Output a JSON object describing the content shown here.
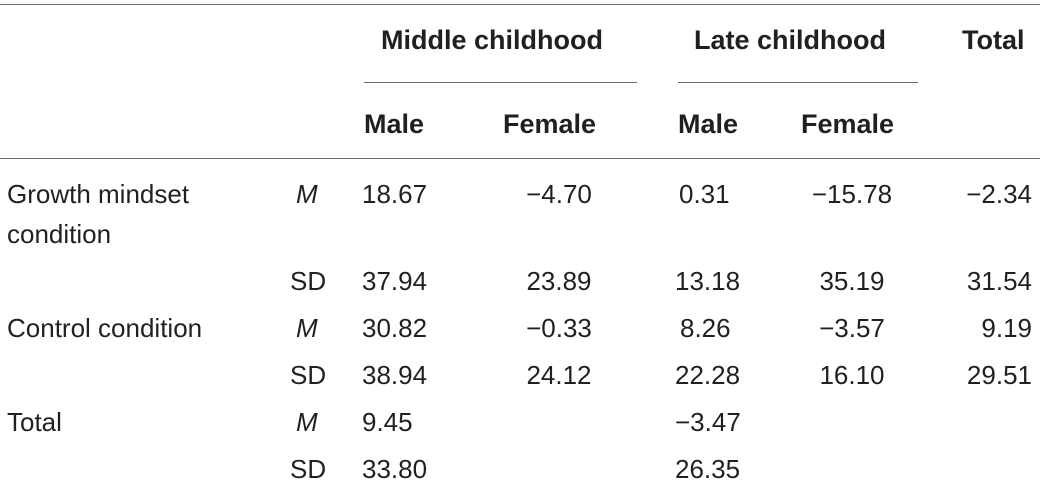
{
  "header": {
    "groups": [
      "Middle childhood",
      "Late childhood",
      "Total"
    ],
    "subcolumns": [
      "Male",
      "Female",
      "Male",
      "Female"
    ]
  },
  "rows": [
    {
      "label": [
        "Growth mindset",
        "condition"
      ],
      "stat": "M",
      "values": [
        "18.67",
        "−4.70",
        "0.31",
        "−15.78",
        "−2.34"
      ]
    },
    {
      "label": [],
      "stat": "SD",
      "values": [
        "37.94",
        "23.89",
        "13.18",
        "35.19",
        "31.54"
      ]
    },
    {
      "label": [
        "Control condition"
      ],
      "stat": "M",
      "values": [
        "30.82",
        "−0.33",
        "8.26",
        "−3.57",
        "9.19"
      ]
    },
    {
      "label": [],
      "stat": "SD",
      "values": [
        "38.94",
        "24.12",
        "22.28",
        "16.10",
        "29.51"
      ]
    },
    {
      "label": [
        "Total"
      ],
      "stat": "M",
      "values": [
        "9.45",
        "",
        "−3.47",
        "",
        ""
      ]
    },
    {
      "label": [],
      "stat": "SD",
      "values": [
        "33.80",
        "",
        "26.35",
        "",
        ""
      ]
    }
  ]
}
